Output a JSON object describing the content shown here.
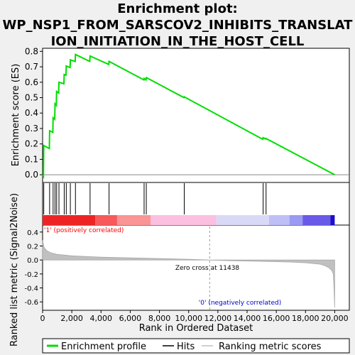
{
  "chart_data": {
    "type": "line",
    "title_lines": [
      "Enrichment plot:",
      "WP_NSP1_FROM_SARSCOV2_INHIBITS_TRANSLAT",
      "ION_INITIATION_IN_THE_HOST_CELL"
    ],
    "ylabel_top": "Enrichment score (ES)",
    "ylabel_bottom": "Ranked list metric (Signal2Noise)",
    "xlabel": "Rank in Ordered Dataset",
    "x_range": [
      0,
      21000
    ],
    "es_ylim": [
      -0.05,
      0.82
    ],
    "metric_ylim": [
      -0.72,
      0.5
    ],
    "x_ticks": [
      "0",
      "2,000",
      "4,000",
      "6,000",
      "8,000",
      "10,000",
      "12,000",
      "14,000",
      "16,000",
      "18,000",
      "20,000"
    ],
    "x_tick_values": [
      0,
      2000,
      4000,
      6000,
      8000,
      10000,
      12000,
      14000,
      16000,
      18000,
      20000
    ],
    "es_ticks": [
      "0.0",
      "0.1",
      "0.2",
      "0.3",
      "0.4",
      "0.5",
      "0.6",
      "0.7",
      "0.8"
    ],
    "es_tick_values": [
      0.0,
      0.1,
      0.2,
      0.3,
      0.4,
      0.5,
      0.6,
      0.7,
      0.8
    ],
    "metric_ticks": [
      "-0.6",
      "-0.4",
      "-0.2",
      "0.0",
      "0.2",
      "0.4"
    ],
    "metric_tick_values": [
      -0.6,
      -0.4,
      -0.2,
      0.0,
      0.2,
      0.4
    ],
    "hits": [
      80,
      480,
      720,
      850,
      960,
      1120,
      1480,
      1620,
      1900,
      2250,
      3250,
      4550,
      6950,
      7100,
      9700,
      15100,
      15300
    ],
    "es_curve": {
      "x": [
        0,
        60,
        80,
        460,
        480,
        700,
        720,
        830,
        850,
        940,
        960,
        1100,
        1120,
        1460,
        1480,
        1600,
        1620,
        1880,
        1900,
        2230,
        2250,
        3230,
        3250,
        4530,
        4550,
        6930,
        6950,
        7080,
        7100,
        9680,
        9700,
        15080,
        15100,
        15280,
        15300,
        20000
      ],
      "y": [
        0.0,
        -0.01,
        0.19,
        0.17,
        0.285,
        0.275,
        0.37,
        0.36,
        0.46,
        0.45,
        0.54,
        0.53,
        0.6,
        0.59,
        0.65,
        0.645,
        0.705,
        0.695,
        0.745,
        0.735,
        0.78,
        0.735,
        0.77,
        0.715,
        0.735,
        0.615,
        0.625,
        0.615,
        0.63,
        0.5,
        0.505,
        0.23,
        0.24,
        0.232,
        0.235,
        0.0
      ]
    },
    "metric_curve": {
      "x": [
        0,
        100,
        300,
        600,
        1000,
        1500,
        2000,
        3000,
        4000,
        5000,
        6000,
        7000,
        8000,
        9000,
        10000,
        11438,
        13000,
        15000,
        16000,
        17000,
        18000,
        18500,
        19000,
        19300,
        19600,
        19800,
        19900,
        19950,
        20000
      ],
      "y": [
        0.28,
        0.18,
        0.13,
        0.1,
        0.08,
        0.07,
        0.06,
        0.05,
        0.04,
        0.035,
        0.03,
        0.025,
        0.02,
        0.015,
        0.01,
        0.0,
        -0.01,
        -0.02,
        -0.025,
        -0.03,
        -0.04,
        -0.05,
        -0.06,
        -0.08,
        -0.11,
        -0.15,
        -0.2,
        -0.4,
        -0.68
      ]
    },
    "zero_cross_label": "Zero cross at 11438",
    "zero_cross_value": 11438,
    "pos_label": "'1' (positively correlated)",
    "neg_label": "'0' (negatively correlated)",
    "heat_segments": [
      {
        "x0": 0,
        "x1": 3600,
        "color": "#ee2424"
      },
      {
        "x0": 3600,
        "x1": 5100,
        "color": "#f65a5a"
      },
      {
        "x0": 5100,
        "x1": 7400,
        "color": "#fb9494"
      },
      {
        "x0": 7400,
        "x1": 11900,
        "color": "#fbbfe0"
      },
      {
        "x0": 11900,
        "x1": 15500,
        "color": "#d9d9f7"
      },
      {
        "x0": 15500,
        "x1": 16900,
        "color": "#bfbff7"
      },
      {
        "x0": 16900,
        "x1": 17800,
        "color": "#9a9af2"
      },
      {
        "x0": 17800,
        "x1": 19700,
        "color": "#6a5ae8"
      },
      {
        "x0": 19700,
        "x1": 20000,
        "color": "#1c0fc8"
      }
    ],
    "colors": {
      "es_line": "#00dd00",
      "metric_fill": "#c0c0c0",
      "hit_line": "#000000",
      "pos_text": "#ff0000",
      "neg_text": "#0000cc",
      "zero_line": "#999999"
    },
    "legend": [
      {
        "label": "Enrichment profile",
        "kind": "es"
      },
      {
        "label": "Hits",
        "kind": "hit"
      },
      {
        "label": "Ranking metric scores",
        "kind": "metric"
      }
    ]
  }
}
